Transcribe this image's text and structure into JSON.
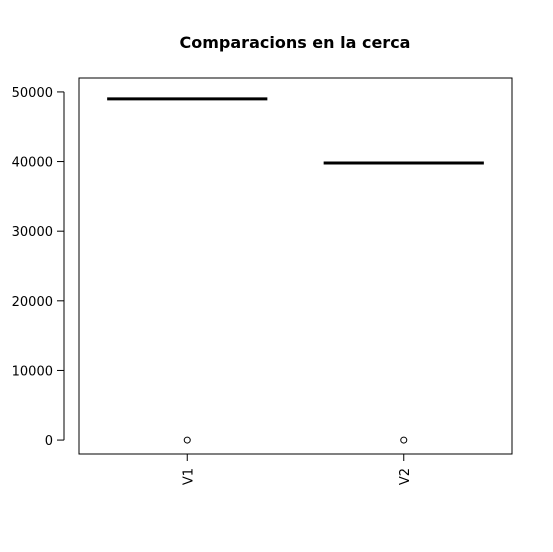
{
  "chart_data": {
    "type": "boxplot",
    "title": "Comparacions en la cerca",
    "xlabel": "",
    "ylabel": "",
    "categories": [
      "V1",
      "V2"
    ],
    "series": [
      {
        "category": "V1",
        "box_value": 49000,
        "outliers": [
          0
        ]
      },
      {
        "category": "V2",
        "box_value": 39800,
        "outliers": [
          0
        ]
      }
    ],
    "yticks": [
      0,
      10000,
      20000,
      30000,
      40000,
      50000
    ],
    "ylim": [
      -2000,
      52000
    ],
    "grid": false,
    "legend": "none",
    "colors": {
      "median": "#000000",
      "axis": "#000000",
      "background": "#ffffff"
    }
  }
}
